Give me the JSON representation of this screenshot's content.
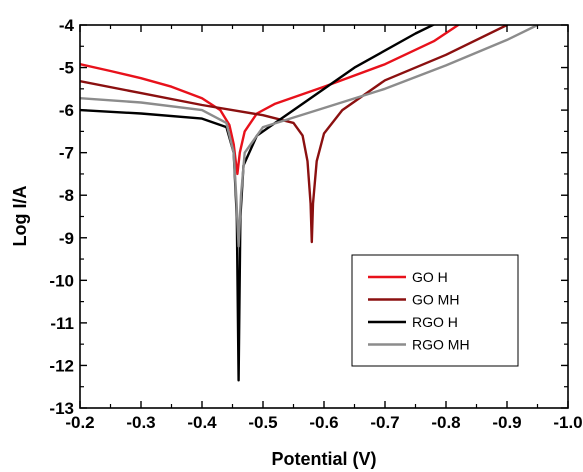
{
  "chart_data": {
    "type": "line",
    "title": "",
    "xlabel": "Potential (V)",
    "ylabel": "Log I/A",
    "xlim": [
      -0.2,
      -1.0
    ],
    "ylim": [
      -13,
      -4
    ],
    "x_ticks": [
      "-0.2",
      "-0.3",
      "-0.4",
      "-0.5",
      "-0.6",
      "-0.7",
      "-0.8",
      "-0.9",
      "-1.0"
    ],
    "x_tick_values": [
      -0.2,
      -0.3,
      -0.4,
      -0.5,
      -0.6,
      -0.7,
      -0.8,
      -0.9,
      -1.0
    ],
    "y_ticks": [
      "-4",
      "-5",
      "-6",
      "-7",
      "-8",
      "-9",
      "-10",
      "-11",
      "-12",
      "-13"
    ],
    "y_tick_values": [
      -4,
      -5,
      -6,
      -7,
      -8,
      -9,
      -10,
      -11,
      -12,
      -13
    ],
    "grid": false,
    "legend_position": "bottom-right",
    "series": [
      {
        "name": "GO H",
        "color": "#e8111b",
        "points": [
          [
            -0.2,
            -4.92
          ],
          [
            -0.25,
            -5.08
          ],
          [
            -0.3,
            -5.25
          ],
          [
            -0.35,
            -5.45
          ],
          [
            -0.4,
            -5.72
          ],
          [
            -0.43,
            -6.0
          ],
          [
            -0.445,
            -6.35
          ],
          [
            -0.452,
            -6.8
          ],
          [
            -0.456,
            -7.3
          ],
          [
            -0.458,
            -7.5
          ],
          [
            -0.462,
            -7.0
          ],
          [
            -0.47,
            -6.5
          ],
          [
            -0.49,
            -6.08
          ],
          [
            -0.52,
            -5.85
          ],
          [
            -0.6,
            -5.45
          ],
          [
            -0.7,
            -4.92
          ],
          [
            -0.78,
            -4.38
          ],
          [
            -0.82,
            -4.0
          ]
        ]
      },
      {
        "name": "GO MH",
        "color": "#8b1010",
        "points": [
          [
            -0.2,
            -5.32
          ],
          [
            -0.3,
            -5.6
          ],
          [
            -0.4,
            -5.88
          ],
          [
            -0.5,
            -6.12
          ],
          [
            -0.55,
            -6.3
          ],
          [
            -0.565,
            -6.6
          ],
          [
            -0.573,
            -7.2
          ],
          [
            -0.578,
            -8.2
          ],
          [
            -0.58,
            -9.1
          ],
          [
            -0.582,
            -8.2
          ],
          [
            -0.588,
            -7.2
          ],
          [
            -0.6,
            -6.55
          ],
          [
            -0.63,
            -6.0
          ],
          [
            -0.7,
            -5.3
          ],
          [
            -0.8,
            -4.7
          ],
          [
            -0.9,
            -4.0
          ]
        ]
      },
      {
        "name": "RGO H",
        "color": "#000000",
        "points": [
          [
            -0.2,
            -6.0
          ],
          [
            -0.3,
            -6.08
          ],
          [
            -0.4,
            -6.2
          ],
          [
            -0.44,
            -6.4
          ],
          [
            -0.452,
            -7.0
          ],
          [
            -0.457,
            -8.5
          ],
          [
            -0.46,
            -12.35
          ],
          [
            -0.463,
            -8.5
          ],
          [
            -0.468,
            -7.3
          ],
          [
            -0.49,
            -6.6
          ],
          [
            -0.55,
            -6.0
          ],
          [
            -0.65,
            -5.0
          ],
          [
            -0.75,
            -4.2
          ],
          [
            -0.8,
            -3.85
          ]
        ]
      },
      {
        "name": "RGO MH",
        "color": "#8c8c8c",
        "points": [
          [
            -0.2,
            -5.72
          ],
          [
            -0.3,
            -5.82
          ],
          [
            -0.4,
            -6.0
          ],
          [
            -0.44,
            -6.3
          ],
          [
            -0.452,
            -7.0
          ],
          [
            -0.456,
            -8.0
          ],
          [
            -0.46,
            -9.2
          ],
          [
            -0.464,
            -8.0
          ],
          [
            -0.47,
            -7.0
          ],
          [
            -0.5,
            -6.4
          ],
          [
            -0.6,
            -5.95
          ],
          [
            -0.7,
            -5.5
          ],
          [
            -0.8,
            -4.95
          ],
          [
            -0.9,
            -4.35
          ],
          [
            -0.95,
            -4.0
          ]
        ]
      }
    ]
  }
}
